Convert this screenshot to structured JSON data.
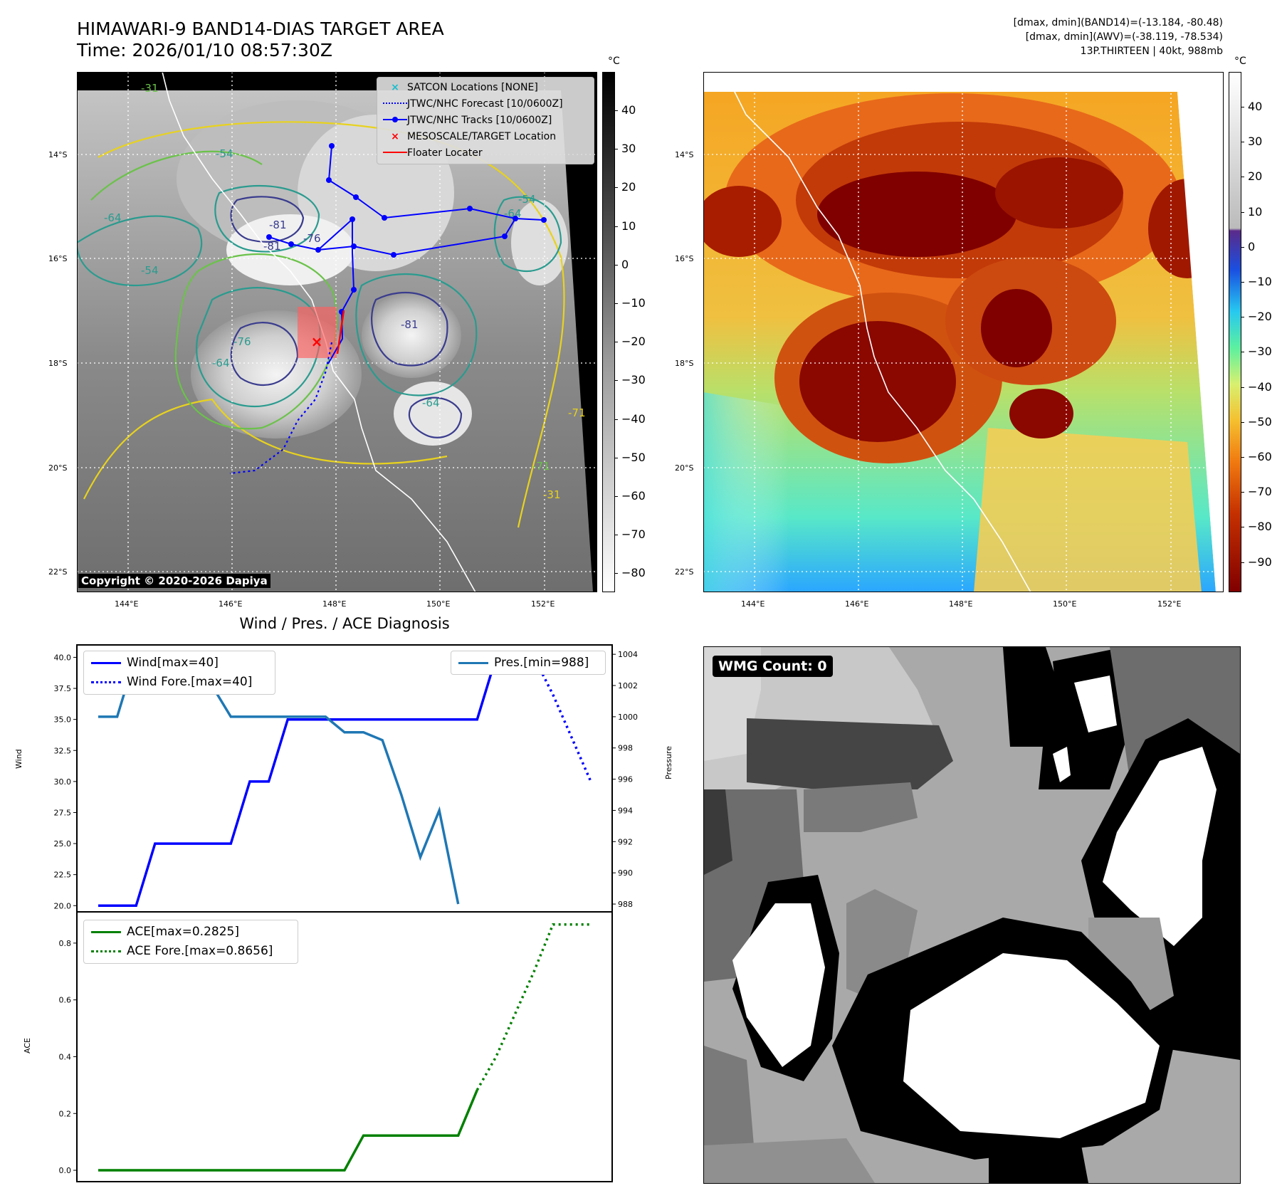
{
  "header": {
    "title_line1": "HIMAWARI-9 BAND14-DIAS TARGET AREA",
    "title_line2": "Time: 2026/01/10 08:57:30Z",
    "info_line1": "[dmax, dmin](BAND14)=(-13.184, -80.48)",
    "info_line2": "[dmax, dmin](AWV)=(-38.119, -78.534)",
    "info_line3": "13P.THIRTEEN | 40kt, 988mb"
  },
  "map_axes": {
    "lat_labels": [
      "14°S",
      "16°S",
      "18°S",
      "20°S",
      "22°S"
    ],
    "lon_labels": [
      "144°E",
      "146°E",
      "148°E",
      "150°E",
      "152°E"
    ]
  },
  "ir_panel": {
    "colorbar_unit": "°C",
    "colorbar_ticks": [
      "40",
      "30",
      "20",
      "10",
      "0",
      "−10",
      "−20",
      "−30",
      "−40",
      "−50",
      "−60",
      "−70",
      "−80"
    ],
    "copyright": "Copyright © 2020-2026 Dapiya",
    "contour_labels": [
      "-54",
      "-54",
      "-64",
      "-81",
      "-81",
      "-76",
      "-31",
      "-64",
      "-54",
      "-81",
      "-76",
      "-64",
      "-31",
      "-71",
      "-71",
      "-64"
    ],
    "legend": [
      {
        "label": "SATCON Locations [NONE]",
        "color": "#17becf",
        "marker": "x-cyan"
      },
      {
        "label": "JTWC/NHC Forecast [10/0600Z]",
        "color": "#0000ff",
        "marker": "dotted-line"
      },
      {
        "label": "JTWC/NHC Tracks [10/0600Z]",
        "color": "#0000ff",
        "marker": "line-dot"
      },
      {
        "label": "MESOSCALE/TARGET Location",
        "color": "#ff0000",
        "marker": "x-red"
      },
      {
        "label": "Floater Locater",
        "color": "#ff0000",
        "marker": "solid-line"
      }
    ]
  },
  "color_panel": {
    "colorbar_unit": "°C",
    "colorbar_ticks": [
      "40",
      "30",
      "20",
      "10",
      "0",
      "−10",
      "−20",
      "−30",
      "−40",
      "−50",
      "−60",
      "−70",
      "−80",
      "−90"
    ]
  },
  "wmg_panel": {
    "badge": "WMG Count: 0"
  },
  "chart_data": [
    {
      "type": "line",
      "title": "Wind / Pres. / ACE Diagnosis",
      "ylabel": "Wind",
      "y2label": "Pressure",
      "ylim": [
        19.5,
        41.0
      ],
      "y2lim": [
        987.5,
        1004.6
      ],
      "y_ticks": [
        "40.0",
        "37.5",
        "35.0",
        "32.5",
        "30.0",
        "27.5",
        "25.0",
        "22.5",
        "20.0"
      ],
      "y2_ticks": [
        "1004",
        "1002",
        "1000",
        "998",
        "996",
        "994",
        "992",
        "990",
        "988"
      ],
      "x": [
        0,
        1,
        2,
        3,
        4,
        5,
        6,
        7,
        8,
        9,
        10,
        11,
        12,
        13,
        14,
        15,
        16,
        17,
        18,
        19,
        20,
        21,
        22,
        23,
        24,
        25,
        26
      ],
      "series": [
        {
          "name": "Wind[max=40]",
          "axis": "left",
          "color": "#0000ff",
          "style": "solid",
          "x": [
            0,
            1,
            2,
            3,
            4,
            5,
            6,
            7,
            8,
            9,
            10,
            11,
            12,
            13,
            14,
            15,
            16,
            17,
            18,
            19,
            20,
            21
          ],
          "values": [
            20,
            20,
            20,
            25,
            25,
            25,
            25,
            25,
            30,
            30,
            35,
            35,
            35,
            35,
            35,
            35,
            35,
            35,
            35,
            35,
            35,
            40
          ]
        },
        {
          "name": "Wind Fore.[max=40]",
          "axis": "left",
          "color": "#0000ff",
          "style": "dotted",
          "x": [
            21,
            22,
            23,
            24,
            25,
            26
          ],
          "values": [
            40,
            40,
            40,
            37,
            33.5,
            30
          ]
        },
        {
          "name": "Pres.[min=988]",
          "axis": "right",
          "color": "#1f77b4",
          "style": "solid",
          "x": [
            0,
            1,
            2,
            3,
            4,
            5,
            6,
            7,
            8,
            9,
            10,
            11,
            12,
            13,
            14,
            15,
            16,
            17,
            18,
            19,
            20,
            21
          ],
          "values": [
            1000,
            1000,
            1004,
            1004,
            1003,
            1002,
            1002,
            1000,
            1000,
            1000,
            1000,
            1000,
            1000,
            999,
            999,
            998.5,
            995,
            991,
            994,
            988,
            null,
            null
          ]
        }
      ],
      "legend_left": [
        "Wind[max=40]",
        "Wind Fore.[max=40]"
      ],
      "legend_right": [
        "Pres.[min=988]"
      ]
    },
    {
      "type": "line",
      "ylabel": "ACE",
      "ylim": [
        -0.04,
        0.91
      ],
      "y_ticks": [
        "0.8",
        "0.6",
        "0.4",
        "0.2",
        "0.0"
      ],
      "series": [
        {
          "name": "ACE[max=0.2825]",
          "color": "#008000",
          "style": "solid",
          "x": [
            0,
            1,
            2,
            3,
            4,
            5,
            6,
            7,
            8,
            9,
            10,
            11,
            12,
            13,
            14,
            15,
            16,
            17,
            18,
            19,
            20
          ],
          "values": [
            0,
            0,
            0,
            0,
            0,
            0,
            0,
            0,
            0,
            0,
            0,
            0,
            0,
            0,
            0.1225,
            0.1225,
            0.1225,
            0.1225,
            0.1225,
            0.1225,
            0.2825
          ]
        },
        {
          "name": "ACE Fore.[max=0.8656]",
          "color": "#008000",
          "style": "dotted",
          "x": [
            20,
            21,
            22,
            23,
            24,
            25,
            26
          ],
          "values": [
            0.2825,
            0.4,
            0.55,
            0.7,
            0.8656,
            0.8656,
            0.8656
          ]
        }
      ],
      "legend": [
        "ACE[max=0.2825]",
        "ACE Fore.[max=0.8656]"
      ]
    }
  ]
}
